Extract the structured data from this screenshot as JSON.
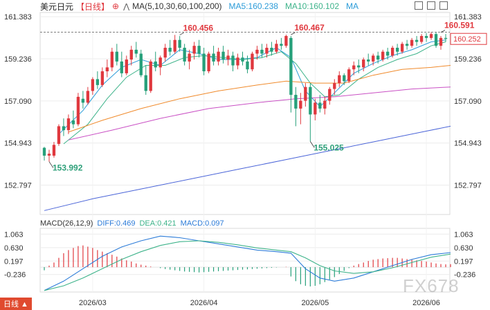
{
  "header": {
    "symbol": "美元日元",
    "period": "【日线】",
    "ma_title": "MA(5,10,30,60,100,200)",
    "ma5": "MA5:160.238",
    "ma10": "MA10:160.102",
    "ma_more": "MA"
  },
  "colors": {
    "up": "#e0383e",
    "down": "#26a07a",
    "ma5": "#2b9bd8",
    "ma10": "#3db38a",
    "ma30": "#f08a2b",
    "ma60": "#c94fc4",
    "ma100": "#4a64d8",
    "dashed": "#555555",
    "diff": "#2b7bd8",
    "dea": "#3db38a"
  },
  "macd_header": {
    "title": "MACD(26,12,9)",
    "diff": "DIFF:0.469",
    "dea": "DEA:0.421",
    "macd": "MACD:0.097"
  },
  "watermark": "FX678",
  "corner_tag": "日线 ▲",
  "chart_data": {
    "type": "candlestick",
    "price_axis": {
      "ticks": [
        161.383,
        159.236,
        157.09,
        154.943,
        152.797
      ],
      "range": [
        151.3,
        161.6
      ]
    },
    "macd_axis": {
      "ticks": [
        1.063,
        0.63,
        0.197,
        -0.236
      ],
      "range": [
        -0.8,
        1.25
      ]
    },
    "x_labels": [
      {
        "index": 10,
        "label": "2026/03"
      },
      {
        "index": 33,
        "label": "2026/04"
      },
      {
        "index": 56,
        "label": "2026/05"
      },
      {
        "index": 79,
        "label": "2026/06"
      }
    ],
    "current_price": 160.252,
    "annotations": [
      {
        "index": 1,
        "price": 153.992,
        "label": "153.992",
        "kind": "low"
      },
      {
        "index": 28,
        "price": 160.456,
        "label": "160.456",
        "kind": "high"
      },
      {
        "index": 51,
        "price": 160.467,
        "label": "160.467",
        "kind": "high"
      },
      {
        "index": 55,
        "price": 155.025,
        "label": "155.025",
        "kind": "low"
      },
      {
        "index": 82,
        "price": 160.591,
        "label": "160.591",
        "kind": "high"
      }
    ],
    "candles": [
      [
        154.7,
        154.75,
        154.05,
        154.3
      ],
      [
        154.3,
        154.6,
        153.992,
        154.4
      ],
      [
        154.3,
        155.0,
        154.2,
        154.85
      ],
      [
        154.9,
        155.9,
        154.8,
        155.8
      ],
      [
        155.8,
        156.2,
        155.3,
        155.6
      ],
      [
        155.6,
        156.4,
        155.4,
        156.2
      ],
      [
        156.1,
        156.6,
        155.7,
        155.9
      ],
      [
        155.9,
        157.5,
        155.8,
        157.3
      ],
      [
        157.2,
        157.6,
        156.7,
        157.0
      ],
      [
        157.0,
        157.8,
        156.9,
        157.6
      ],
      [
        157.6,
        158.3,
        157.4,
        158.2
      ],
      [
        158.2,
        158.6,
        157.7,
        157.9
      ],
      [
        157.9,
        158.8,
        157.8,
        158.6
      ],
      [
        158.6,
        159.2,
        158.3,
        158.8
      ],
      [
        158.8,
        159.8,
        158.6,
        159.6
      ],
      [
        159.6,
        160.0,
        158.9,
        159.1
      ],
      [
        159.1,
        159.6,
        158.3,
        158.5
      ],
      [
        158.5,
        159.4,
        158.4,
        159.2
      ],
      [
        159.2,
        159.9,
        158.9,
        159.7
      ],
      [
        159.7,
        160.1,
        159.3,
        159.5
      ],
      [
        159.5,
        159.7,
        158.3,
        158.4
      ],
      [
        158.4,
        158.9,
        157.4,
        157.6
      ],
      [
        157.6,
        159.2,
        157.5,
        159.1
      ],
      [
        159.1,
        159.6,
        158.6,
        158.8
      ],
      [
        158.8,
        159.4,
        158.4,
        159.3
      ],
      [
        159.3,
        160.0,
        159.1,
        159.8
      ],
      [
        159.8,
        160.2,
        159.4,
        159.6
      ],
      [
        159.6,
        160.456,
        159.5,
        160.2
      ],
      [
        160.2,
        160.4,
        159.6,
        159.8
      ],
      [
        159.8,
        160.0,
        158.9,
        159.1
      ],
      [
        159.1,
        159.7,
        158.7,
        159.5
      ],
      [
        159.5,
        160.1,
        159.2,
        159.9
      ],
      [
        159.9,
        160.2,
        159.3,
        159.5
      ],
      [
        159.5,
        159.8,
        158.4,
        158.6
      ],
      [
        158.6,
        159.6,
        158.5,
        159.5
      ],
      [
        159.5,
        159.9,
        158.9,
        159.1
      ],
      [
        159.1,
        159.8,
        158.9,
        159.6
      ],
      [
        159.6,
        159.9,
        159.0,
        159.2
      ],
      [
        159.2,
        159.7,
        158.9,
        159.4
      ],
      [
        159.4,
        159.6,
        158.6,
        158.9
      ],
      [
        158.9,
        159.5,
        158.7,
        159.3
      ],
      [
        159.3,
        159.6,
        158.9,
        159.1
      ],
      [
        159.1,
        159.4,
        158.5,
        158.7
      ],
      [
        158.7,
        159.6,
        158.6,
        159.5
      ],
      [
        159.5,
        159.9,
        159.2,
        159.7
      ],
      [
        159.7,
        160.0,
        159.3,
        159.5
      ],
      [
        159.5,
        160.0,
        159.3,
        159.8
      ],
      [
        159.8,
        160.1,
        159.4,
        159.6
      ],
      [
        159.6,
        160.2,
        159.5,
        160.0
      ],
      [
        160.0,
        160.3,
        159.7,
        159.9
      ],
      [
        159.9,
        160.467,
        159.8,
        160.4
      ],
      [
        160.3,
        160.4,
        156.5,
        157.4
      ],
      [
        157.4,
        157.8,
        155.8,
        156.7
      ],
      [
        156.7,
        157.5,
        155.9,
        157.1
      ],
      [
        157.1,
        158.0,
        156.8,
        157.8
      ],
      [
        157.8,
        158.0,
        155.025,
        156.4
      ],
      [
        156.4,
        157.2,
        156.1,
        157.0
      ],
      [
        157.0,
        157.4,
        156.5,
        156.7
      ],
      [
        156.7,
        157.3,
        156.4,
        157.1
      ],
      [
        157.1,
        157.8,
        156.9,
        157.7
      ],
      [
        157.7,
        158.2,
        157.4,
        158.0
      ],
      [
        158.0,
        158.6,
        157.8,
        158.4
      ],
      [
        158.4,
        158.5,
        157.9,
        158.1
      ],
      [
        158.1,
        158.8,
        158.0,
        158.7
      ],
      [
        158.7,
        159.1,
        158.4,
        158.9
      ],
      [
        158.9,
        159.2,
        158.5,
        158.8
      ],
      [
        158.8,
        159.3,
        158.6,
        159.2
      ],
      [
        159.2,
        159.5,
        158.9,
        159.1
      ],
      [
        159.1,
        159.5,
        158.9,
        159.4
      ],
      [
        159.4,
        159.6,
        159.0,
        159.2
      ],
      [
        159.2,
        159.7,
        159.1,
        159.6
      ],
      [
        159.6,
        159.8,
        159.2,
        159.4
      ],
      [
        159.4,
        159.9,
        159.3,
        159.8
      ],
      [
        159.8,
        160.0,
        159.4,
        159.6
      ],
      [
        159.6,
        160.1,
        159.5,
        160.0
      ],
      [
        160.0,
        160.2,
        159.7,
        159.9
      ],
      [
        159.9,
        160.3,
        159.8,
        160.2
      ],
      [
        160.2,
        160.4,
        159.9,
        160.1
      ],
      [
        160.1,
        160.5,
        160.0,
        160.4
      ],
      [
        160.4,
        160.55,
        160.1,
        160.3
      ],
      [
        160.3,
        160.6,
        160.2,
        160.5
      ],
      [
        160.5,
        160.591,
        159.8,
        159.9
      ],
      [
        159.9,
        160.4,
        159.7,
        160.3
      ],
      [
        160.3,
        160.5,
        160.1,
        160.252
      ]
    ],
    "ma_series": [
      {
        "name": "MA5",
        "color_key": "ma5",
        "points": [
          [
            3,
            155.4
          ],
          [
            8,
            156.6
          ],
          [
            12,
            157.9
          ],
          [
            16,
            158.8
          ],
          [
            20,
            159.2
          ],
          [
            24,
            158.9
          ],
          [
            28,
            159.7
          ],
          [
            32,
            159.5
          ],
          [
            36,
            159.2
          ],
          [
            40,
            159.2
          ],
          [
            44,
            159.3
          ],
          [
            48,
            159.8
          ],
          [
            51,
            159.3
          ],
          [
            54,
            157.6
          ],
          [
            57,
            156.8
          ],
          [
            60,
            157.5
          ],
          [
            64,
            158.5
          ],
          [
            68,
            159.0
          ],
          [
            72,
            159.4
          ],
          [
            76,
            159.7
          ],
          [
            80,
            160.1
          ],
          [
            83,
            160.2
          ]
        ]
      },
      {
        "name": "MA10",
        "color_key": "ma10",
        "points": [
          [
            4,
            154.9
          ],
          [
            9,
            155.9
          ],
          [
            13,
            157.2
          ],
          [
            17,
            158.3
          ],
          [
            21,
            158.9
          ],
          [
            25,
            158.9
          ],
          [
            29,
            159.3
          ],
          [
            33,
            159.4
          ],
          [
            37,
            159.3
          ],
          [
            41,
            159.2
          ],
          [
            45,
            159.3
          ],
          [
            49,
            159.6
          ],
          [
            52,
            159.0
          ],
          [
            55,
            158.0
          ],
          [
            58,
            157.3
          ],
          [
            61,
            157.4
          ],
          [
            65,
            158.2
          ],
          [
            69,
            158.8
          ],
          [
            73,
            159.2
          ],
          [
            77,
            159.5
          ],
          [
            80,
            159.9
          ],
          [
            83,
            160.1
          ]
        ]
      },
      {
        "name": "MA30",
        "color_key": "ma30",
        "points": [
          [
            5,
            155.5
          ],
          [
            12,
            156.1
          ],
          [
            20,
            156.7
          ],
          [
            28,
            157.2
          ],
          [
            36,
            157.6
          ],
          [
            44,
            157.9
          ],
          [
            50,
            158.1
          ],
          [
            56,
            158.0
          ],
          [
            62,
            158.0
          ],
          [
            68,
            158.4
          ],
          [
            74,
            158.7
          ],
          [
            80,
            158.8
          ],
          [
            84,
            158.9
          ]
        ]
      },
      {
        "name": "MA60",
        "color_key": "ma60",
        "points": [
          [
            5,
            155.1
          ],
          [
            14,
            155.6
          ],
          [
            24,
            156.2
          ],
          [
            34,
            156.7
          ],
          [
            44,
            157.0
          ],
          [
            52,
            157.2
          ],
          [
            60,
            157.3
          ],
          [
            68,
            157.5
          ],
          [
            76,
            157.7
          ],
          [
            84,
            157.8
          ]
        ]
      },
      {
        "name": "MA100",
        "color_key": "ma100",
        "points": [
          [
            0,
            151.5
          ],
          [
            10,
            152.1
          ],
          [
            20,
            152.6
          ],
          [
            30,
            153.1
          ],
          [
            40,
            153.6
          ],
          [
            50,
            154.1
          ],
          [
            60,
            154.6
          ],
          [
            70,
            155.1
          ],
          [
            78,
            155.5
          ],
          [
            84,
            155.8
          ]
        ]
      }
    ],
    "macd": {
      "diff": [
        [
          0,
          -0.75
        ],
        [
          4,
          -0.45
        ],
        [
          8,
          -0.05
        ],
        [
          12,
          0.35
        ],
        [
          16,
          0.65
        ],
        [
          20,
          0.85
        ],
        [
          24,
          1.0
        ],
        [
          28,
          0.95
        ],
        [
          32,
          0.85
        ],
        [
          36,
          0.75
        ],
        [
          40,
          0.65
        ],
        [
          44,
          0.55
        ],
        [
          48,
          0.5
        ],
        [
          51,
          0.45
        ],
        [
          54,
          -0.05
        ],
        [
          57,
          -0.35
        ],
        [
          60,
          -0.45
        ],
        [
          64,
          -0.35
        ],
        [
          68,
          -0.15
        ],
        [
          72,
          0.05
        ],
        [
          76,
          0.25
        ],
        [
          80,
          0.4
        ],
        [
          84,
          0.47
        ]
      ],
      "dea": [
        [
          0,
          -0.75
        ],
        [
          4,
          -0.6
        ],
        [
          8,
          -0.35
        ],
        [
          12,
          -0.05
        ],
        [
          16,
          0.25
        ],
        [
          20,
          0.5
        ],
        [
          24,
          0.7
        ],
        [
          28,
          0.82
        ],
        [
          32,
          0.85
        ],
        [
          36,
          0.8
        ],
        [
          40,
          0.72
        ],
        [
          44,
          0.62
        ],
        [
          48,
          0.55
        ],
        [
          51,
          0.5
        ],
        [
          54,
          0.3
        ],
        [
          57,
          0.05
        ],
        [
          60,
          -0.12
        ],
        [
          64,
          -0.2
        ],
        [
          68,
          -0.15
        ],
        [
          72,
          -0.02
        ],
        [
          76,
          0.15
        ],
        [
          80,
          0.32
        ],
        [
          84,
          0.42
        ]
      ],
      "hist": [
        -0.1,
        0.05,
        0.15,
        0.3,
        0.45,
        0.55,
        0.62,
        0.68,
        0.7,
        0.66,
        0.62,
        0.55,
        0.5,
        0.45,
        0.4,
        0.34,
        0.28,
        0.22,
        0.18,
        0.12,
        0.08,
        0.05,
        0.02,
        0.0,
        -0.03,
        -0.06,
        -0.08,
        -0.1,
        -0.12,
        -0.14,
        -0.15,
        -0.16,
        -0.17,
        -0.16,
        -0.15,
        -0.14,
        -0.13,
        -0.12,
        -0.11,
        -0.1,
        -0.09,
        -0.08,
        -0.07,
        -0.06,
        -0.05,
        -0.04,
        -0.03,
        -0.02,
        -0.01,
        0.0,
        0.01,
        -0.3,
        -0.45,
        -0.55,
        -0.6,
        -0.62,
        -0.6,
        -0.55,
        -0.48,
        -0.4,
        -0.32,
        -0.22,
        -0.12,
        -0.03,
        0.05,
        0.1,
        0.15,
        0.2,
        0.24,
        0.26,
        0.28,
        0.29,
        0.3,
        0.3,
        0.28,
        0.26,
        0.24,
        0.22,
        0.2,
        0.18,
        0.15,
        0.12,
        0.1,
        0.09,
        0.097
      ]
    }
  }
}
